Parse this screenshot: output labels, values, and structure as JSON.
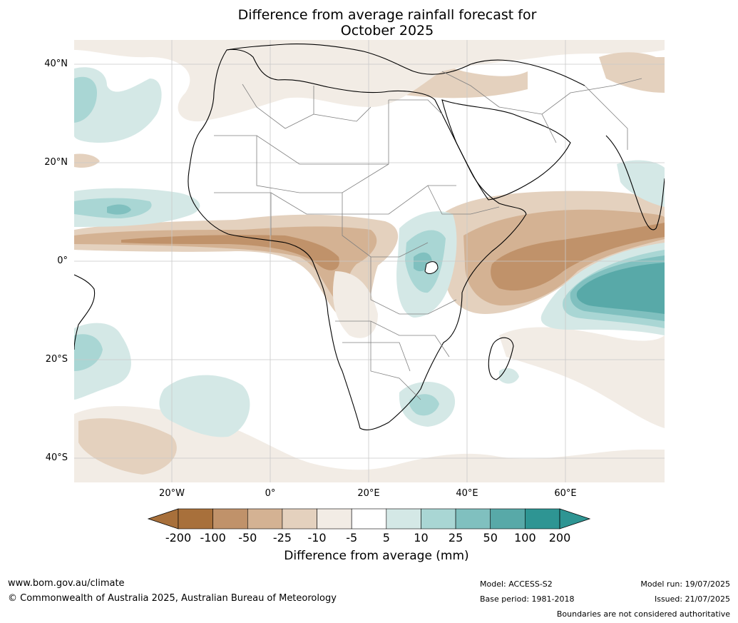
{
  "title": {
    "line1": "Difference from average rainfall forecast for",
    "line2": "October 2025"
  },
  "map": {
    "lat_ticks": [
      "40°N",
      "20°N",
      "0°",
      "20°S",
      "40°S"
    ],
    "lon_ticks": [
      "20°W",
      "0°",
      "20°E",
      "40°E",
      "60°E"
    ]
  },
  "colorbar": {
    "label": "Difference from average (mm)",
    "ticks": [
      "-200",
      "-100",
      "-50",
      "-25",
      "-10",
      "-5",
      "5",
      "10",
      "25",
      "50",
      "100",
      "200"
    ],
    "colors": [
      "#a8703b",
      "#c0926a",
      "#d4b293",
      "#e4d1be",
      "#f2ece5",
      "#ffffff",
      "#d4e8e6",
      "#a9d6d4",
      "#80c0bf",
      "#58a9a8",
      "#2e9593"
    ],
    "extend_low_color": "#a8703b",
    "extend_high_color": "#2e9593"
  },
  "footer": {
    "website": "www.bom.gov.au/climate",
    "copyright": "© Commonwealth of Australia 2025, Australian Bureau of Meteorology",
    "model": "Model: ACCESS-S2",
    "base_period": "Base period: 1981-2018",
    "model_run": "Model run: 19/07/2025",
    "issued": "Issued: 21/07/2025",
    "disclaimer": "Boundaries are not considered authoritative"
  }
}
